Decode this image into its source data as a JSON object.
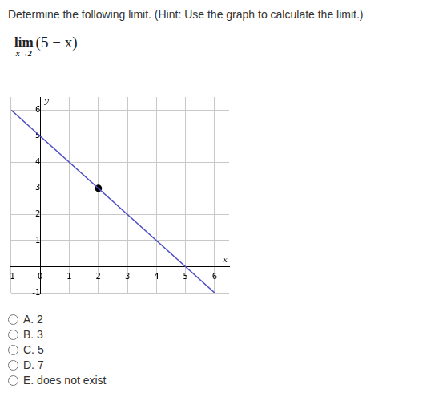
{
  "question": {
    "text": "Determine the following limit. (Hint: Use the graph to calculate the limit.)",
    "limit": {
      "operator": "lim",
      "approach": "x→2",
      "expression": "(5 − x)"
    }
  },
  "chart_data": {
    "type": "line",
    "x_label": "x",
    "y_label": "y",
    "series": [
      {
        "x": [
          -1,
          6
        ],
        "values": [
          6,
          -1
        ],
        "color": "#4b4bc8",
        "marker": "none",
        "line_style": "solid"
      },
      {
        "x": [
          2
        ],
        "values": [
          3
        ],
        "color": "#000000",
        "marker": "circle",
        "line_style": "none"
      }
    ],
    "xlim": [
      -1,
      6.5
    ],
    "xticks": [
      -1,
      0,
      1,
      2,
      3,
      4,
      5,
      6
    ],
    "ylim": [
      -1,
      6.5
    ],
    "yticks": [
      -1,
      1,
      2,
      3,
      4,
      5,
      6
    ],
    "grid": true
  },
  "choices": [
    "A. 2",
    "B. 3",
    "C. 5",
    "D. 7",
    "E. does not exist"
  ]
}
